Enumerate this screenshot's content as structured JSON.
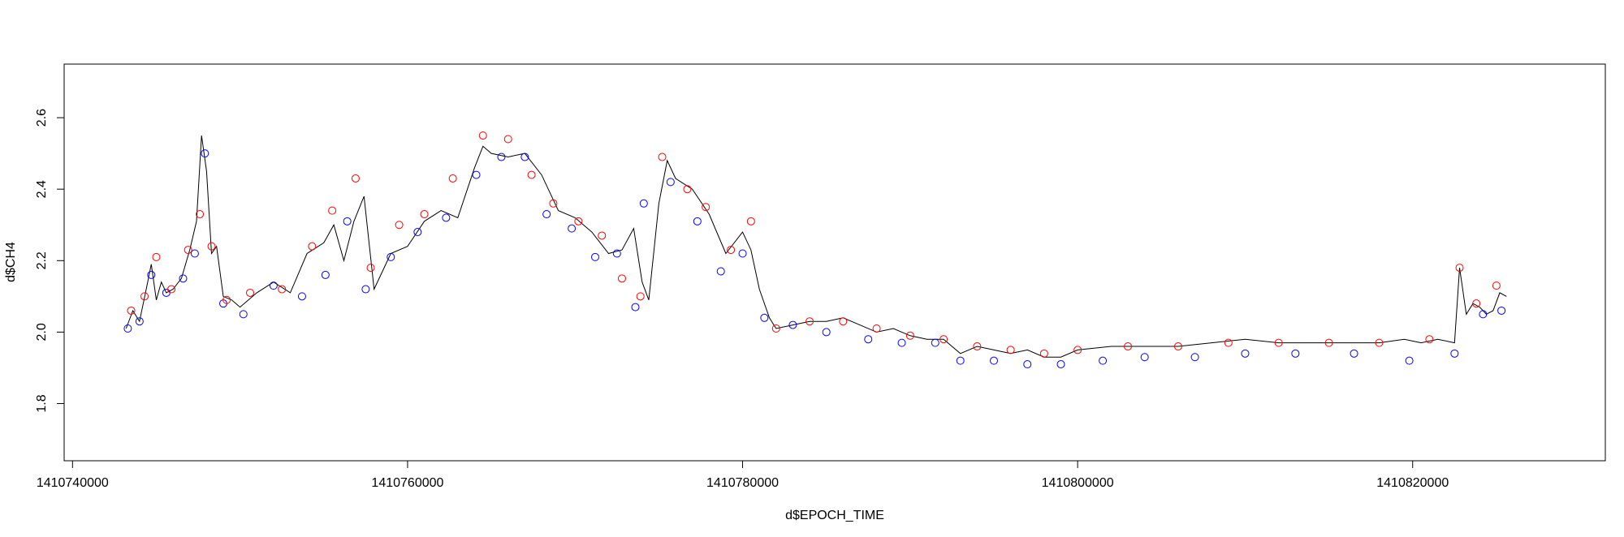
{
  "chart_data": {
    "type": "scatter",
    "xlabel": "d$EPOCH_TIME",
    "ylabel": "d$CH4",
    "xlim": [
      1410739500,
      1410831500
    ],
    "ylim": [
      1.64,
      2.75
    ],
    "x_ticks": [
      1410740000,
      1410760000,
      1410780000,
      1410800000,
      1410820000
    ],
    "y_ticks": [
      1.8,
      2.0,
      2.2,
      2.4,
      2.6
    ],
    "grid": false,
    "legend": "none",
    "colors": {
      "line": "#000000",
      "low_points": "#0000ff",
      "high_points": "#ff0000"
    },
    "line": {
      "x": [
        1410743200,
        1410743600,
        1410744000,
        1410744400,
        1410744700,
        1410745000,
        1410745300,
        1410745600,
        1410746000,
        1410746500,
        1410747000,
        1410747400,
        1410747700,
        1410748000,
        1410748300,
        1410748600,
        1410749000,
        1410749500,
        1410750000,
        1410751000,
        1410752000,
        1410753000,
        1410754000,
        1410755000,
        1410755600,
        1410756200,
        1410756800,
        1410757400,
        1410758000,
        1410759000,
        1410760000,
        1410761000,
        1410762000,
        1410763000,
        1410764000,
        1410764500,
        1410765000,
        1410766000,
        1410767000,
        1410768000,
        1410769000,
        1410770000,
        1410771000,
        1410772000,
        1410772800,
        1410773500,
        1410774000,
        1410774400,
        1410775000,
        1410775500,
        1410776000,
        1410777000,
        1410778000,
        1410779000,
        1410780000,
        1410780500,
        1410781000,
        1410781600,
        1410782000,
        1410783000,
        1410784000,
        1410785000,
        1410786000,
        1410787000,
        1410788000,
        1410789000,
        1410790000,
        1410791000,
        1410792000,
        1410793000,
        1410794000,
        1410795000,
        1410796000,
        1410797000,
        1410798000,
        1410799000,
        1410800000,
        1410802000,
        1410804000,
        1410806000,
        1410808000,
        1410810000,
        1410812000,
        1410814000,
        1410816000,
        1410818000,
        1410819500,
        1410820500,
        1410821500,
        1410822500,
        1410822800,
        1410823200,
        1410823600,
        1410824000,
        1410824400,
        1410824800,
        1410825200,
        1410825600
      ],
      "y": [
        2.01,
        2.06,
        2.03,
        2.12,
        2.19,
        2.09,
        2.14,
        2.11,
        2.12,
        2.15,
        2.23,
        2.31,
        2.55,
        2.45,
        2.22,
        2.24,
        2.1,
        2.09,
        2.07,
        2.11,
        2.14,
        2.11,
        2.22,
        2.25,
        2.3,
        2.2,
        2.31,
        2.38,
        2.12,
        2.22,
        2.24,
        2.31,
        2.34,
        2.32,
        2.46,
        2.52,
        2.5,
        2.49,
        2.5,
        2.44,
        2.34,
        2.32,
        2.28,
        2.22,
        2.23,
        2.29,
        2.14,
        2.09,
        2.36,
        2.48,
        2.43,
        2.4,
        2.33,
        2.22,
        2.28,
        2.23,
        2.12,
        2.04,
        2.01,
        2.02,
        2.03,
        2.03,
        2.04,
        2.02,
        2.0,
        2.01,
        1.99,
        1.98,
        1.98,
        1.94,
        1.96,
        1.95,
        1.94,
        1.95,
        1.93,
        1.93,
        1.95,
        1.96,
        1.96,
        1.96,
        1.97,
        1.98,
        1.97,
        1.97,
        1.97,
        1.97,
        1.98,
        1.97,
        1.98,
        1.97,
        2.18,
        2.05,
        2.08,
        2.07,
        2.05,
        2.06,
        2.11,
        2.1
      ]
    },
    "high_points": {
      "x": [
        1410743500,
        1410744300,
        1410745000,
        1410745900,
        1410746900,
        1410747600,
        1410748300,
        1410749200,
        1410750600,
        1410752500,
        1410754300,
        1410755500,
        1410756900,
        1410757800,
        1410759500,
        1410761000,
        1410762700,
        1410764500,
        1410766000,
        1410767400,
        1410768700,
        1410770200,
        1410771600,
        1410772800,
        1410773900,
        1410775200,
        1410776700,
        1410777800,
        1410779300,
        1410780500,
        1410782000,
        1410784000,
        1410786000,
        1410788000,
        1410790000,
        1410792000,
        1410794000,
        1410796000,
        1410798000,
        1410800000,
        1410803000,
        1410806000,
        1410809000,
        1410812000,
        1410815000,
        1410818000,
        1410821000,
        1410822800,
        1410823800,
        1410825000
      ],
      "y": [
        2.06,
        2.1,
        2.21,
        2.12,
        2.23,
        2.33,
        2.24,
        2.09,
        2.11,
        2.12,
        2.24,
        2.34,
        2.43,
        2.18,
        2.3,
        2.33,
        2.43,
        2.55,
        2.54,
        2.44,
        2.36,
        2.31,
        2.27,
        2.15,
        2.1,
        2.49,
        2.4,
        2.35,
        2.23,
        2.31,
        2.01,
        2.03,
        2.03,
        2.01,
        1.99,
        1.98,
        1.96,
        1.95,
        1.94,
        1.95,
        1.96,
        1.96,
        1.97,
        1.97,
        1.97,
        1.97,
        1.98,
        2.18,
        2.08,
        2.13
      ]
    },
    "low_points": {
      "x": [
        1410743300,
        1410744000,
        1410744700,
        1410745600,
        1410746600,
        1410747300,
        1410747900,
        1410749000,
        1410750200,
        1410752000,
        1410753700,
        1410755100,
        1410756400,
        1410757500,
        1410759000,
        1410760600,
        1410762300,
        1410764100,
        1410765600,
        1410767000,
        1410768300,
        1410769800,
        1410771200,
        1410772500,
        1410773600,
        1410774100,
        1410775700,
        1410777300,
        1410778700,
        1410780000,
        1410781300,
        1410783000,
        1410785000,
        1410787500,
        1410789500,
        1410791500,
        1410793000,
        1410795000,
        1410797000,
        1410799000,
        1410801500,
        1410804000,
        1410807000,
        1410810000,
        1410813000,
        1410816500,
        1410819800,
        1410822500,
        1410824200,
        1410825300
      ],
      "y": [
        2.01,
        2.03,
        2.16,
        2.11,
        2.15,
        2.22,
        2.5,
        2.08,
        2.05,
        2.13,
        2.1,
        2.16,
        2.31,
        2.12,
        2.21,
        2.28,
        2.32,
        2.44,
        2.49,
        2.49,
        2.33,
        2.29,
        2.21,
        2.22,
        2.07,
        2.36,
        2.42,
        2.31,
        2.17,
        2.22,
        2.04,
        2.02,
        2.0,
        1.98,
        1.97,
        1.97,
        1.92,
        1.92,
        1.91,
        1.91,
        1.92,
        1.93,
        1.93,
        1.94,
        1.94,
        1.94,
        1.92,
        1.94,
        2.05,
        2.06
      ]
    }
  }
}
